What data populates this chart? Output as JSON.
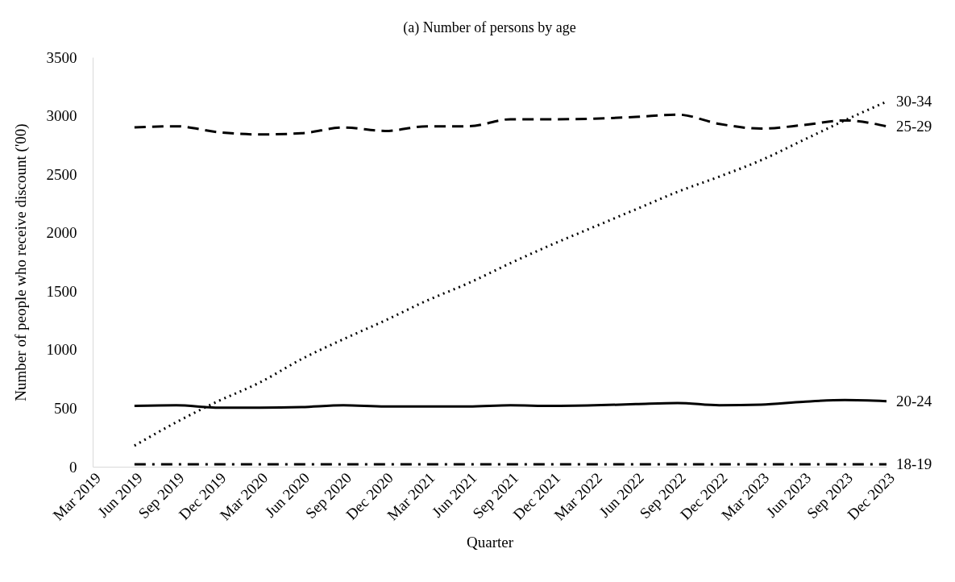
{
  "chart_data": {
    "type": "line",
    "title": "(a) Number of persons by age",
    "xlabel": "Quarter",
    "ylabel": "Number of people who receive discount  ('00)",
    "categories": [
      "Mar 2019",
      "Jun 2019",
      "Sep 2019",
      "Dec 2019",
      "Mar 2020",
      "Jun 2020",
      "Sep 2020",
      "Dec 2020",
      "Mar 2021",
      "Jun 2021",
      "Sep 2021",
      "Dec 2021",
      "Mar 2022",
      "Jun 2022",
      "Sep 2022",
      "Dec 2022",
      "Mar 2023",
      "Jun 2023",
      "Sep 2023",
      "Dec 2023"
    ],
    "series": [
      {
        "name": "30-34",
        "color": "#000000",
        "line_style": "dotted",
        "values": [
          null,
          180,
          380,
          560,
          720,
          920,
          1090,
          1250,
          1420,
          1570,
          1740,
          1900,
          2050,
          2200,
          2350,
          2480,
          2620,
          2790,
          2960,
          3120
        ]
      },
      {
        "name": "25-29",
        "color": "#000000",
        "line_style": "dashed",
        "values": [
          null,
          2900,
          2910,
          2860,
          2840,
          2850,
          2900,
          2870,
          2910,
          2910,
          2970,
          2970,
          2975,
          2990,
          3010,
          2930,
          2890,
          2920,
          2960,
          2910
        ]
      },
      {
        "name": "20-24",
        "color": "#000000",
        "line_style": "solid",
        "values": [
          null,
          520,
          525,
          505,
          505,
          510,
          525,
          515,
          515,
          515,
          525,
          520,
          525,
          535,
          545,
          525,
          530,
          555,
          570,
          560
        ]
      },
      {
        "name": "18-19",
        "color": "#000000",
        "line_style": "dashdot",
        "values": [
          null,
          20,
          20,
          20,
          20,
          20,
          20,
          20,
          20,
          20,
          20,
          20,
          20,
          20,
          20,
          20,
          20,
          20,
          20,
          20
        ]
      }
    ],
    "ylim": [
      0,
      3500
    ],
    "yticks": [
      0,
      500,
      1000,
      1500,
      2000,
      2500,
      3000,
      3500
    ],
    "grid": false
  }
}
